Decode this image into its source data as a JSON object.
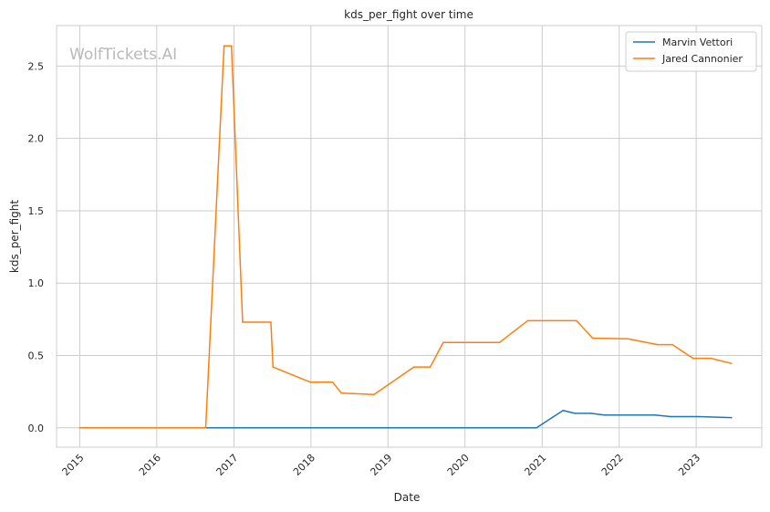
{
  "chart_data": {
    "type": "line",
    "title": "kds_per_fight over time",
    "xlabel": "Date",
    "ylabel": "kds_per_fight",
    "watermark": "WolfTickets.AI",
    "x_tick_labels": [
      "2015",
      "2016",
      "2017",
      "2018",
      "2019",
      "2020",
      "2021",
      "2022",
      "2023"
    ],
    "y_tick_labels": [
      "0.0",
      "0.5",
      "1.0",
      "1.5",
      "2.0",
      "2.5"
    ],
    "y_ticks": [
      0,
      0.5,
      1.0,
      1.5,
      2.0,
      2.5
    ],
    "xlim": [
      "2014-09-13",
      "2023-11-08"
    ],
    "ylim": [
      -0.134,
      2.78
    ],
    "grid": true,
    "legend_position": "top-right",
    "series": [
      {
        "name": "Marvin Vettori",
        "color": "#1f77b4",
        "points": [
          [
            "2016-08-20",
            0.0
          ],
          [
            "2020-12-05",
            0.0
          ],
          [
            "2021-04-10",
            0.12
          ],
          [
            "2021-06-05",
            0.1
          ],
          [
            "2021-08-20",
            0.1
          ],
          [
            "2021-10-23",
            0.088
          ],
          [
            "2022-06-20",
            0.088
          ],
          [
            "2022-09-03",
            0.077
          ],
          [
            "2023-01-15",
            0.077
          ],
          [
            "2023-06-17",
            0.07
          ]
        ]
      },
      {
        "name": "Jared Cannonier",
        "color": "#ff7f0e",
        "points": [
          [
            "2015-01-01",
            0.0
          ],
          [
            "2016-08-20",
            0.0
          ],
          [
            "2016-11-15",
            2.64
          ],
          [
            "2016-12-20",
            2.64
          ],
          [
            "2017-02-11",
            0.73
          ],
          [
            "2017-06-25",
            0.73
          ],
          [
            "2017-07-05",
            0.42
          ],
          [
            "2017-12-30",
            0.315
          ],
          [
            "2018-04-14",
            0.315
          ],
          [
            "2018-05-25",
            0.24
          ],
          [
            "2018-10-27",
            0.23
          ],
          [
            "2019-05-04",
            0.42
          ],
          [
            "2019-07-20",
            0.42
          ],
          [
            "2019-09-20",
            0.59
          ],
          [
            "2020-06-13",
            0.59
          ],
          [
            "2020-10-24",
            0.74
          ],
          [
            "2021-06-13",
            0.74
          ],
          [
            "2021-08-28",
            0.62
          ],
          [
            "2022-02-12",
            0.615
          ],
          [
            "2022-07-02",
            0.575
          ],
          [
            "2022-09-10",
            0.575
          ],
          [
            "2022-12-17",
            0.48
          ],
          [
            "2023-03-11",
            0.48
          ],
          [
            "2023-06-17",
            0.445
          ]
        ]
      }
    ]
  }
}
